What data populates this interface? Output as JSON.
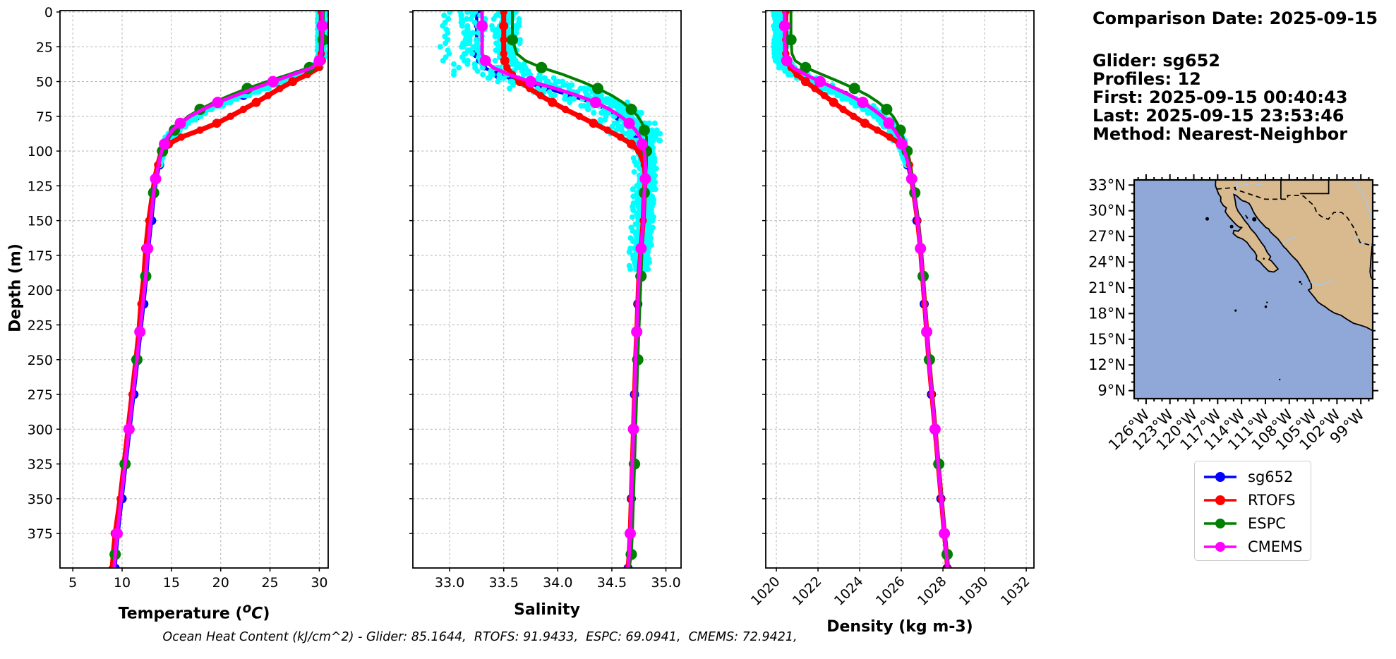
{
  "header": {
    "comparison_date": "Comparison Date: 2025-09-15",
    "glider": "Glider: sg652",
    "profiles": "Profiles: 12",
    "first": "First: 2025-09-15 00:40:43",
    "last": "Last: 2025-09-15 23:53:46",
    "method": "Method: Nearest-Neighbor"
  },
  "footer": {
    "ohc_line": "Ocean Heat Content (kJ/cm^2) - Glider: 85.1644,  RTOFS: 91.9433,  ESPC: 69.0941,  CMEMS: 72.9421,",
    "ohc_values": {
      "glider": 85.1644,
      "rtofs": 91.9433,
      "espc": 69.0941,
      "cmems": 72.9421
    }
  },
  "legend": {
    "entries": [
      {
        "label": "sg652",
        "color": "#0000ff"
      },
      {
        "label": "RTOFS",
        "color": "#ff0000"
      },
      {
        "label": "ESPC",
        "color": "#008000"
      },
      {
        "label": "CMEMS",
        "color": "#ff00ff"
      }
    ]
  },
  "chart_data": {
    "type": "line",
    "orientation": "vertical-profile",
    "grid": true,
    "depth_axis": {
      "label": "Depth (m)",
      "ticks": [
        "0",
        "25",
        "50",
        "75",
        "100",
        "125",
        "150",
        "175",
        "200",
        "225",
        "250",
        "275",
        "300",
        "325",
        "350",
        "375"
      ],
      "range": [
        0,
        400
      ]
    },
    "depths": [
      0,
      10,
      20,
      30,
      35,
      40,
      45,
      50,
      55,
      60,
      65,
      70,
      75,
      80,
      85,
      90,
      95,
      100,
      110,
      120,
      130,
      150,
      170,
      190,
      210,
      230,
      250,
      275,
      300,
      325,
      350,
      375,
      390,
      400
    ],
    "styles": {
      "sg652": {
        "color": "#0000ff",
        "lw": 4.5,
        "mr": 6.5,
        "dot": 4.0,
        "moff": 0
      },
      "RTOFS": {
        "color": "#ff0000",
        "lw": 7.0,
        "mr": 6.5,
        "dot": 5.2,
        "moff": 1
      },
      "ESPC": {
        "color": "#008000",
        "lw": 4.0,
        "mr": 8.0,
        "dot": 0,
        "moff": 2
      },
      "CMEMS": {
        "color": "#ff00ff",
        "lw": 5.0,
        "mr": 8.0,
        "dot": 0,
        "moff": 1
      }
    },
    "scatter_color": "#00ffff",
    "panels": [
      {
        "id": "temperature",
        "xlabel_parts": {
          "prefix": "Temperature (",
          "sup": "o",
          "ital": "C",
          "suffix": ")"
        },
        "xticks": [
          "5",
          "10",
          "15",
          "20",
          "25",
          "30"
        ],
        "xlim": [
          3.7,
          30.9
        ],
        "tick_rotation": 0,
        "series": [
          {
            "name": "sg652",
            "values": [
              30.2,
              30.2,
              30.2,
              30.2,
              30.1,
              29.6,
              27.8,
              26.0,
              24.2,
              22.3,
              20.4,
              18.8,
              17.5,
              16.4,
              15.5,
              14.9,
              14.5,
              14.2,
              13.8,
              13.5,
              13.3,
              13.0,
              12.7,
              12.5,
              12.2,
              11.9,
              11.6,
              11.2,
              10.8,
              10.4,
              10.0,
              9.6,
              9.4,
              9.3
            ]
          },
          {
            "name": "RTOFS",
            "values": [
              30.2,
              30.2,
              30.2,
              30.2,
              30.2,
              30.0,
              28.8,
              27.3,
              26.0,
              24.8,
              23.6,
              22.3,
              21.0,
              19.6,
              17.9,
              16.0,
              14.7,
              14.0,
              13.6,
              13.3,
              13.1,
              12.7,
              12.4,
              12.2,
              11.9,
              11.7,
              11.4,
              11.0,
              10.6,
              10.2,
              9.8,
              9.3,
              9.1,
              9.0
            ]
          },
          {
            "name": "ESPC",
            "values": [
              30.4,
              30.4,
              30.4,
              30.3,
              30.0,
              29.0,
              26.9,
              24.7,
              22.7,
              20.9,
              19.3,
              17.9,
              16.7,
              15.9,
              15.3,
              14.8,
              14.4,
              14.1,
              13.7,
              13.4,
              13.2,
              12.9,
              12.6,
              12.4,
              12.1,
              11.8,
              11.5,
              11.1,
              10.7,
              10.3,
              9.9,
              9.5,
              9.3,
              9.2
            ]
          },
          {
            "name": "CMEMS",
            "values": [
              30.3,
              30.3,
              30.3,
              30.2,
              30.0,
              29.3,
              27.3,
              25.3,
              23.4,
              21.5,
              19.7,
              18.2,
              16.9,
              15.9,
              15.1,
              14.6,
              14.3,
              14.0,
              13.7,
              13.4,
              13.2,
              12.9,
              12.6,
              12.4,
              12.1,
              11.8,
              11.5,
              11.1,
              10.7,
              10.3,
              9.9,
              9.5,
              9.3,
              9.2
            ]
          }
        ],
        "scatter": {
          "name": "glider-raw-profiles",
          "profiles": 12,
          "max_depth": 112,
          "step": 2.5,
          "surface_sigma": 0.07,
          "thermo_sigma": 0.45,
          "deep_sigma": 0.12,
          "profile_spread": 0.35
        }
      },
      {
        "id": "salinity",
        "xlabel": "Salinity",
        "xticks": [
          "33.0",
          "33.5",
          "34.0",
          "34.5",
          "35.0"
        ],
        "xlim": [
          32.66,
          35.14
        ],
        "tick_rotation": 0,
        "series": [
          {
            "name": "sg652",
            "values": [
              33.25,
              33.25,
              33.25,
              33.25,
              33.27,
              33.32,
              33.45,
              33.65,
              33.9,
              34.12,
              34.3,
              34.45,
              34.56,
              34.64,
              34.7,
              34.74,
              34.77,
              34.79,
              34.8,
              34.8,
              34.79,
              34.78,
              34.76,
              34.75,
              34.74,
              34.73,
              34.72,
              34.71,
              34.7,
              34.69,
              34.68,
              34.67,
              34.66,
              34.65
            ]
          },
          {
            "name": "RTOFS",
            "values": [
              33.5,
              33.5,
              33.5,
              33.5,
              33.51,
              33.53,
              33.58,
              33.65,
              33.74,
              33.84,
              33.95,
              34.07,
              34.2,
              34.33,
              34.46,
              34.58,
              34.68,
              34.75,
              34.8,
              34.81,
              34.8,
              34.79,
              34.77,
              34.75,
              34.74,
              34.73,
              34.72,
              34.71,
              34.7,
              34.69,
              34.68,
              34.67,
              34.66,
              34.65
            ]
          },
          {
            "name": "ESPC",
            "values": [
              33.58,
              33.58,
              33.58,
              33.62,
              33.7,
              33.85,
              34.05,
              34.22,
              34.37,
              34.5,
              34.6,
              34.68,
              34.74,
              34.78,
              34.8,
              34.82,
              34.82,
              34.82,
              34.82,
              34.81,
              34.8,
              34.79,
              34.78,
              34.77,
              34.76,
              34.75,
              34.74,
              34.73,
              34.72,
              34.71,
              34.7,
              34.69,
              34.68,
              34.66
            ]
          },
          {
            "name": "CMEMS",
            "values": [
              33.3,
              33.3,
              33.3,
              33.3,
              33.33,
              33.4,
              33.55,
              33.75,
              33.98,
              34.18,
              34.35,
              34.48,
              34.58,
              34.66,
              34.72,
              34.76,
              34.78,
              34.8,
              34.81,
              34.81,
              34.8,
              34.79,
              34.77,
              34.75,
              34.74,
              34.73,
              34.72,
              34.71,
              34.7,
              34.69,
              34.68,
              34.67,
              34.66,
              34.65
            ]
          }
        ],
        "scatter": {
          "name": "glider-raw-profiles",
          "profiles": 12,
          "max_depth": 185,
          "step": 2.5,
          "surface_sigma": 0.05,
          "thermo_sigma": 0.13,
          "deep_sigma": 0.04,
          "profile_spread": 0.38
        }
      },
      {
        "id": "density",
        "xlabel": "Density (kg m-3)",
        "xticks": [
          "1020",
          "1022",
          "1024",
          "1026",
          "1028",
          "1030",
          "1032"
        ],
        "xlim": [
          1019.49,
          1032.37
        ],
        "tick_rotation": 45,
        "series": [
          {
            "name": "sg652",
            "values": [
              1020.2,
              1020.2,
              1020.2,
              1020.22,
              1020.3,
              1020.55,
              1021.1,
              1021.8,
              1022.55,
              1023.3,
              1023.95,
              1024.5,
              1024.95,
              1025.3,
              1025.6,
              1025.82,
              1025.98,
              1026.1,
              1026.3,
              1026.45,
              1026.55,
              1026.75,
              1026.9,
              1027.0,
              1027.1,
              1027.2,
              1027.3,
              1027.45,
              1027.6,
              1027.75,
              1027.9,
              1028.05,
              1028.15,
              1028.2
            ]
          },
          {
            "name": "RTOFS",
            "values": [
              1020.45,
              1020.45,
              1020.45,
              1020.45,
              1020.5,
              1020.7,
              1021.0,
              1021.4,
              1021.85,
              1022.3,
              1022.75,
              1023.2,
              1023.7,
              1024.25,
              1024.85,
              1025.45,
              1025.95,
              1026.25,
              1026.4,
              1026.5,
              1026.6,
              1026.78,
              1026.92,
              1027.02,
              1027.12,
              1027.22,
              1027.32,
              1027.47,
              1027.62,
              1027.77,
              1027.92,
              1028.07,
              1028.17,
              1028.22
            ]
          },
          {
            "name": "ESPC",
            "values": [
              1020.7,
              1020.7,
              1020.7,
              1020.75,
              1020.9,
              1021.4,
              1022.2,
              1023.0,
              1023.75,
              1024.4,
              1024.9,
              1025.3,
              1025.6,
              1025.8,
              1025.95,
              1026.08,
              1026.18,
              1026.28,
              1026.42,
              1026.55,
              1026.65,
              1026.82,
              1026.95,
              1027.05,
              1027.15,
              1027.25,
              1027.35,
              1027.5,
              1027.65,
              1027.8,
              1027.95,
              1028.1,
              1028.2,
              1028.25
            ]
          },
          {
            "name": "CMEMS",
            "values": [
              1020.4,
              1020.4,
              1020.4,
              1020.42,
              1020.5,
              1020.8,
              1021.4,
              1022.1,
              1022.85,
              1023.55,
              1024.15,
              1024.65,
              1025.08,
              1025.4,
              1025.68,
              1025.88,
              1026.03,
              1026.15,
              1026.35,
              1026.5,
              1026.6,
              1026.78,
              1026.92,
              1027.02,
              1027.12,
              1027.22,
              1027.32,
              1027.47,
              1027.62,
              1027.77,
              1027.92,
              1028.07,
              1028.17,
              1028.22
            ]
          }
        ],
        "scatter": {
          "name": "glider-raw-profiles",
          "profiles": 12,
          "max_depth": 112,
          "step": 2.5,
          "surface_sigma": 0.07,
          "thermo_sigma": 0.28,
          "deep_sigma": 0.08,
          "profile_spread": 0.3
        }
      }
    ]
  },
  "map": {
    "lat_tick_labels": [
      "33°N",
      "30°N",
      "27°N",
      "24°N",
      "21°N",
      "18°N",
      "15°N",
      "12°N",
      "9°N"
    ],
    "lon_tick_labels": [
      "126°W",
      "123°W",
      "120°W",
      "117°W",
      "114°W",
      "111°W",
      "108°W",
      "105°W",
      "102°W",
      "99°W"
    ],
    "colors": {
      "ocean": "#8fa8d8",
      "land": "#d9b98e",
      "river": "#a9c7e8",
      "coast": "#000000"
    }
  }
}
